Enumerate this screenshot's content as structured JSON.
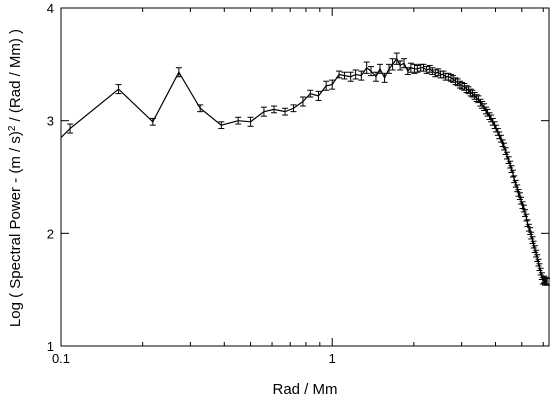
{
  "chart_data": {
    "type": "line",
    "title": "",
    "xlabel": "Rad / Mm",
    "ylabel": "Log ( Spectral Power - (m / s)² / (Rad / Mm) )",
    "xscale": "log",
    "xlim": [
      0.1,
      6.3
    ],
    "ylim": [
      1,
      4
    ],
    "grid": false,
    "legend": "none",
    "colors": {
      "line": "#000000",
      "axes": "#000000",
      "background": "#ffffff"
    },
    "x_ticks": [
      {
        "value": 0.1,
        "label": "0.1"
      },
      {
        "value": 1,
        "label": "1"
      }
    ],
    "y_ticks": [
      {
        "value": 1,
        "label": "1"
      },
      {
        "value": 2,
        "label": "2"
      },
      {
        "value": 3,
        "label": "3"
      },
      {
        "value": 4,
        "label": "4"
      }
    ],
    "series": [
      {
        "x": [
          0.1,
          0.108,
          0.163,
          0.218,
          0.272,
          0.326,
          0.39,
          0.45,
          0.5,
          0.56,
          0.61,
          0.67,
          0.72,
          0.78,
          0.83,
          0.89,
          0.95,
          1.0,
          1.06,
          1.11,
          1.17,
          1.22,
          1.28,
          1.34,
          1.39,
          1.45,
          1.5,
          1.56,
          1.62,
          1.67,
          1.73,
          1.78,
          1.84,
          1.9,
          1.95,
          2.01,
          2.06,
          2.12,
          2.17,
          2.23,
          2.29,
          2.34,
          2.4,
          2.46,
          2.51,
          2.57,
          2.62,
          2.68,
          2.74,
          2.79,
          2.85,
          2.9,
          2.96,
          3.01,
          3.07,
          3.13,
          3.18,
          3.24,
          3.29,
          3.35,
          3.41,
          3.46,
          3.52,
          3.57,
          3.63,
          3.69,
          3.74,
          3.8,
          3.85,
          3.91,
          3.97,
          4.02,
          4.08,
          4.13,
          4.19,
          4.25,
          4.3,
          4.36,
          4.41,
          4.47,
          4.53,
          4.58,
          4.64,
          4.69,
          4.75,
          4.81,
          4.86,
          4.92,
          4.97,
          5.03,
          5.09,
          5.14,
          5.2,
          5.25,
          5.31,
          5.37,
          5.42,
          5.48,
          5.53,
          5.59,
          5.65,
          5.7,
          5.76,
          5.81,
          5.87,
          5.93,
          5.98,
          6.04,
          6.09,
          6.15,
          6.2
        ],
        "y": [
          2.85,
          2.93,
          3.28,
          2.99,
          3.43,
          3.11,
          2.96,
          3.0,
          2.99,
          3.08,
          3.1,
          3.08,
          3.11,
          3.17,
          3.24,
          3.22,
          3.31,
          3.32,
          3.41,
          3.4,
          3.39,
          3.41,
          3.4,
          3.47,
          3.44,
          3.39,
          3.46,
          3.38,
          3.46,
          3.5,
          3.55,
          3.49,
          3.51,
          3.44,
          3.47,
          3.46,
          3.46,
          3.47,
          3.47,
          3.45,
          3.46,
          3.44,
          3.42,
          3.43,
          3.41,
          3.41,
          3.39,
          3.39,
          3.38,
          3.37,
          3.35,
          3.34,
          3.32,
          3.31,
          3.3,
          3.28,
          3.27,
          3.25,
          3.24,
          3.22,
          3.2,
          3.19,
          3.16,
          3.14,
          3.12,
          3.09,
          3.07,
          3.04,
          3.02,
          2.99,
          2.96,
          2.93,
          2.9,
          2.87,
          2.84,
          2.8,
          2.77,
          2.73,
          2.69,
          2.65,
          2.61,
          2.57,
          2.53,
          2.48,
          2.44,
          2.4,
          2.36,
          2.33,
          2.29,
          2.25,
          2.22,
          2.18,
          2.14,
          2.09,
          2.05,
          2.02,
          1.98,
          1.94,
          1.9,
          1.86,
          1.82,
          1.78,
          1.74,
          1.7,
          1.66,
          1.62,
          1.58,
          1.59,
          1.57,
          1.58,
          1.57
        ],
        "yerr": [
          0.0,
          0.04,
          0.04,
          0.03,
          0.04,
          0.03,
          0.03,
          0.03,
          0.04,
          0.04,
          0.03,
          0.03,
          0.03,
          0.04,
          0.03,
          0.04,
          0.04,
          0.04,
          0.03,
          0.03,
          0.04,
          0.04,
          0.04,
          0.05,
          0.04,
          0.04,
          0.04,
          0.04,
          0.04,
          0.05,
          0.05,
          0.04,
          0.04,
          0.03,
          0.04,
          0.04,
          0.03,
          0.03,
          0.03,
          0.03,
          0.03,
          0.03,
          0.03,
          0.03,
          0.03,
          0.03,
          0.03,
          0.03,
          0.03,
          0.03,
          0.03,
          0.03,
          0.03,
          0.03,
          0.03,
          0.03,
          0.03,
          0.03,
          0.03,
          0.03,
          0.03,
          0.03,
          0.03,
          0.03,
          0.03,
          0.03,
          0.03,
          0.03,
          0.03,
          0.03,
          0.03,
          0.03,
          0.03,
          0.03,
          0.03,
          0.03,
          0.03,
          0.03,
          0.03,
          0.03,
          0.03,
          0.03,
          0.03,
          0.03,
          0.03,
          0.03,
          0.03,
          0.03,
          0.03,
          0.03,
          0.03,
          0.03,
          0.03,
          0.03,
          0.03,
          0.03,
          0.03,
          0.03,
          0.03,
          0.03,
          0.03,
          0.03,
          0.03,
          0.03,
          0.03,
          0.03,
          0.03,
          0.03,
          0.03,
          0.03,
          0.03
        ]
      }
    ]
  }
}
